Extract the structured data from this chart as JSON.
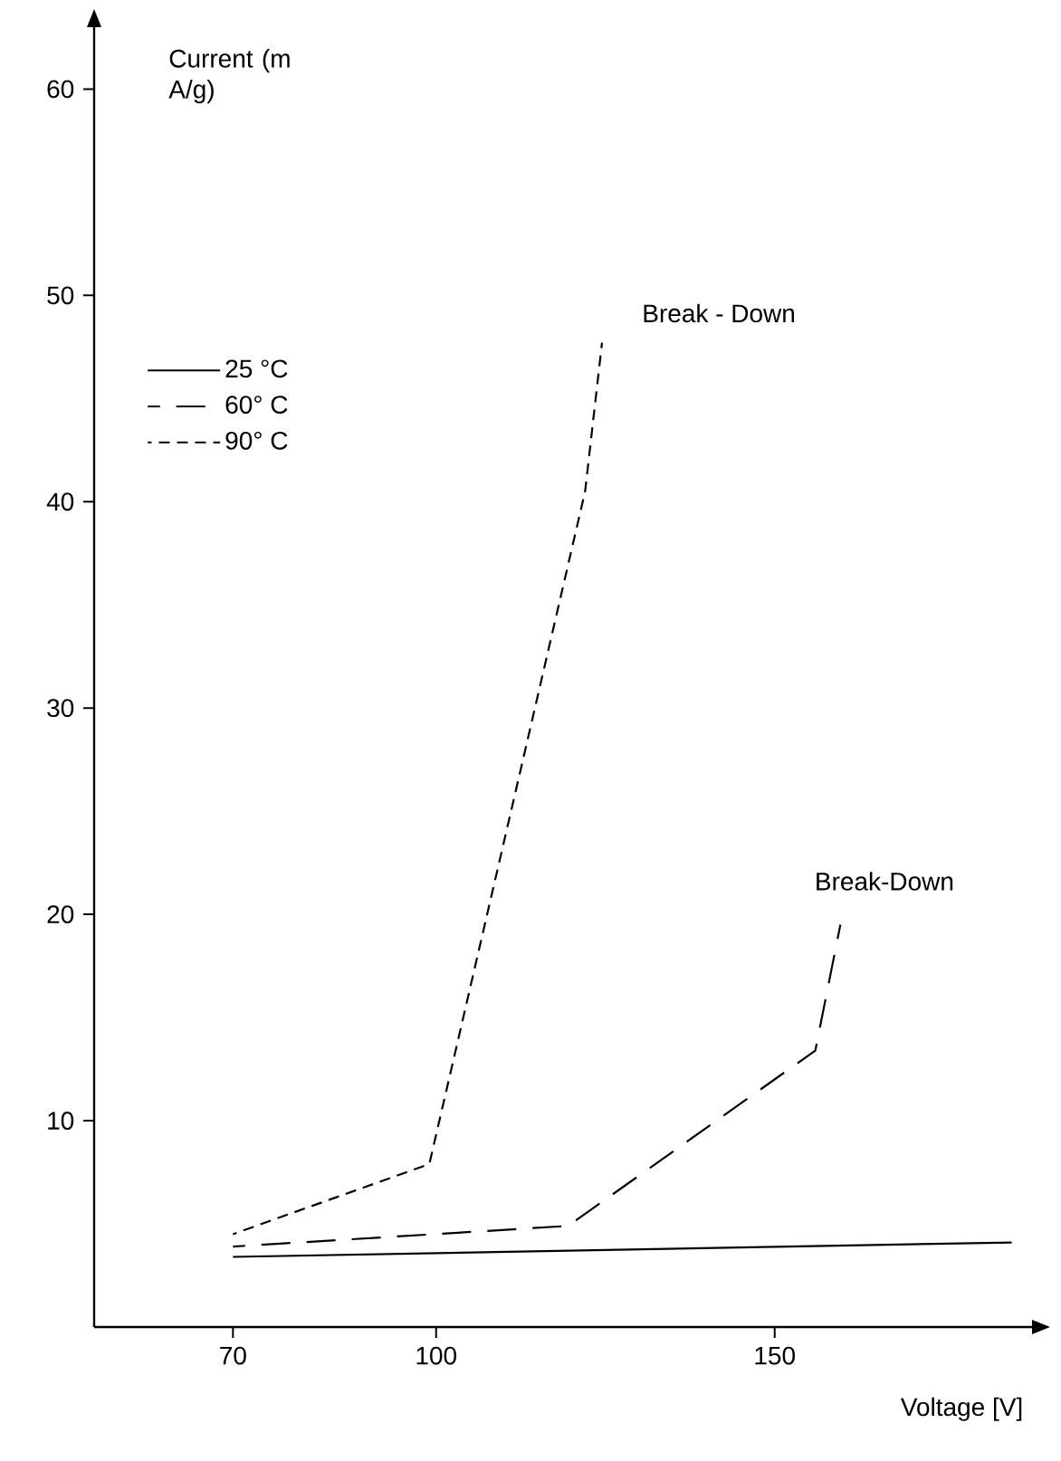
{
  "chart_data": {
    "type": "line",
    "xlabel": "Voltage [V]",
    "ylabel": "Current (m A/g)",
    "xlim": [
      49.5,
      188
    ],
    "ylim": [
      0,
      63
    ],
    "xticks": [
      70,
      100,
      150
    ],
    "yticks": [
      10,
      20,
      30,
      40,
      50,
      60
    ],
    "legend": "top left",
    "grid": false,
    "series": [
      {
        "name": "25 °C",
        "color": "#000000",
        "line_style": "solid",
        "x": [
          70,
          185
        ],
        "values": [
          3.4,
          4.1
        ]
      },
      {
        "name": "60° C",
        "color": "#000000",
        "line_style": "long dashed",
        "x": [
          70,
          119.5,
          156,
          159.7
        ],
        "values": [
          3.9,
          4.9,
          13.4,
          19.5
        ]
      },
      {
        "name": "90° C",
        "color": "#000000",
        "line_style": "dashed",
        "x": [
          70,
          99,
          122,
          124.5
        ],
        "values": [
          4.5,
          7.9,
          40.5,
          47.7
        ]
      }
    ],
    "annotations": [
      "Break - Down",
      "Break-Down"
    ]
  }
}
